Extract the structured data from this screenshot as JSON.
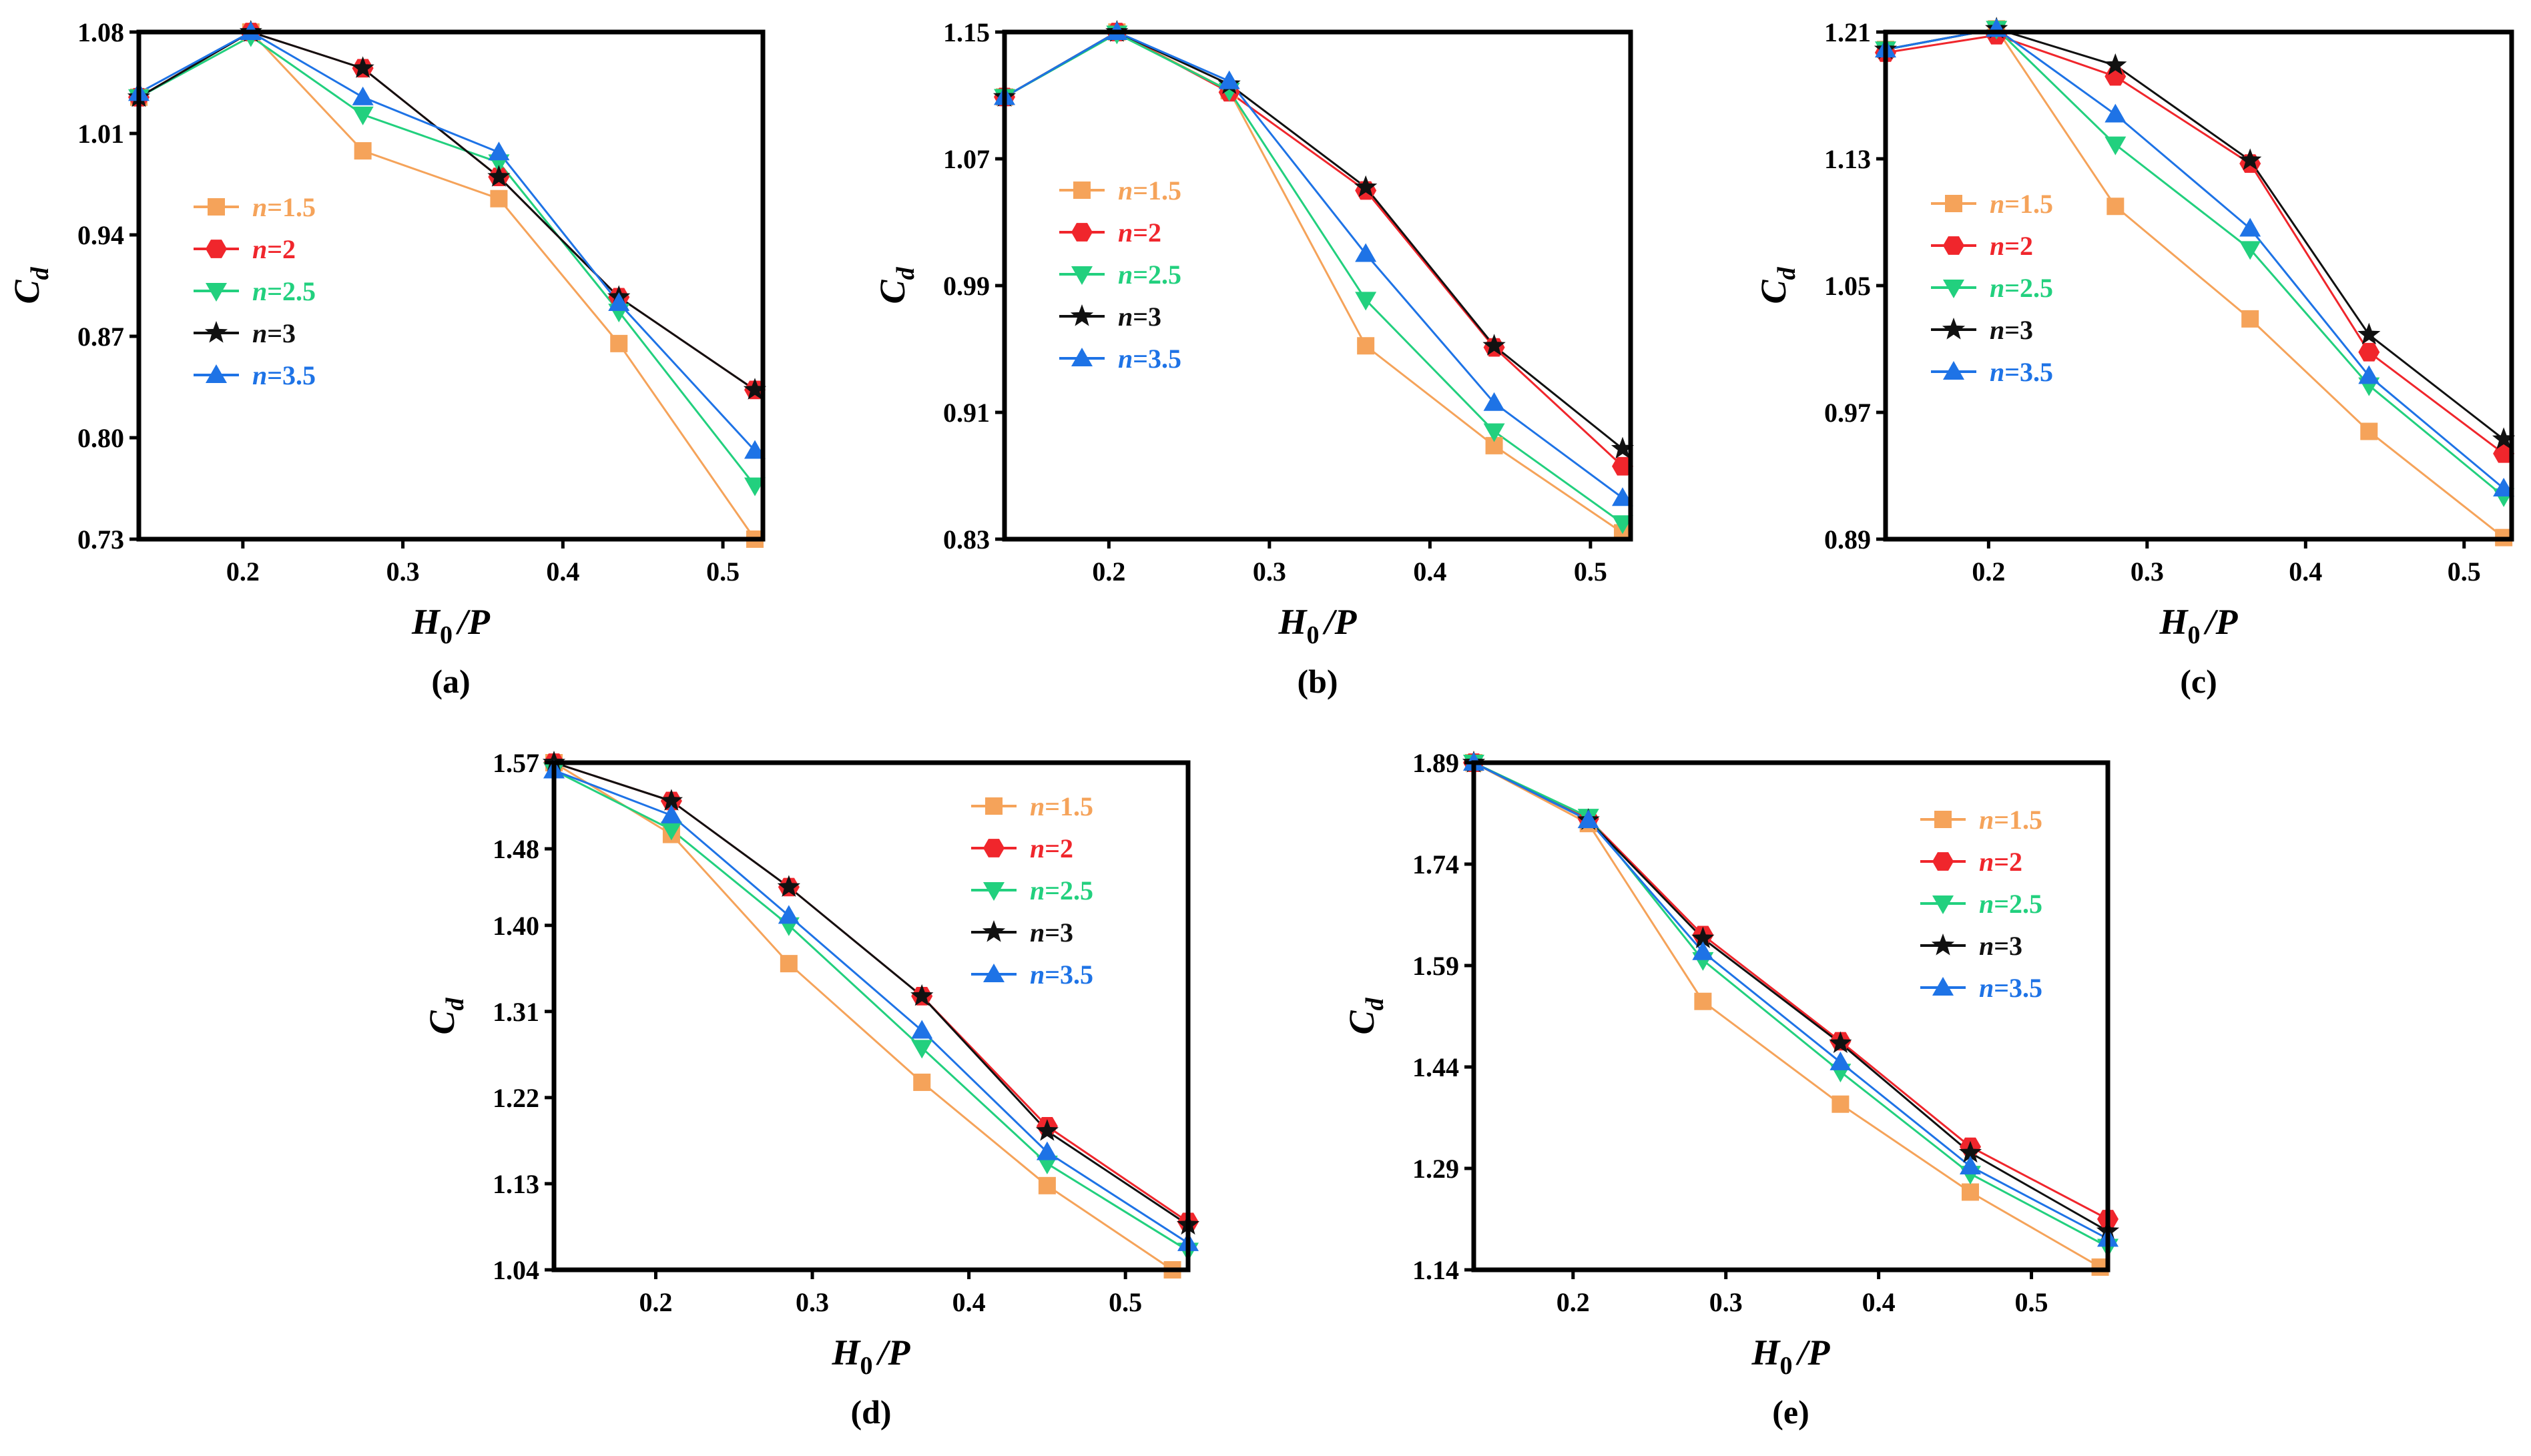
{
  "series_meta": [
    {
      "name": "n=1.5",
      "var": "n",
      "eq": "=1.5",
      "color": "#F5A35A",
      "marker": "square"
    },
    {
      "name": "n=2",
      "var": "n",
      "eq": "=2",
      "color": "#F0262C",
      "marker": "hexagon"
    },
    {
      "name": "n=2.5",
      "var": "n",
      "eq": "=2.5",
      "color": "#22D07E",
      "marker": "triangle-down"
    },
    {
      "name": "n=3",
      "var": "n",
      "eq": "=3",
      "color": "#111111",
      "marker": "star"
    },
    {
      "name": "n=3.5",
      "var": "n",
      "eq": "=3.5",
      "color": "#1E73E6",
      "marker": "triangle-up"
    }
  ],
  "chart_data": [
    {
      "type": "line",
      "label": "(a)",
      "xlabel_main": "H",
      "xlabel_sub": "0",
      "xlabel_rest": "/P",
      "ylabel_main": "C",
      "ylabel_sub": "d",
      "xlim": [
        0.135,
        0.525
      ],
      "ylim": [
        0.73,
        1.08
      ],
      "xticks": [
        0.2,
        0.3,
        0.4,
        0.5
      ],
      "xtick_labels": [
        "0.2",
        "0.3",
        "0.4",
        "0.5"
      ],
      "yticks": [
        0.73,
        0.8,
        0.87,
        0.94,
        1.01,
        1.08
      ],
      "ytick_labels": [
        "0.73",
        "0.80",
        "0.87",
        "0.94",
        "1.01",
        "1.08"
      ],
      "legend_position": "left",
      "series": [
        {
          "name": "n=1.5",
          "x": [
            0.135,
            0.205,
            0.275,
            0.36,
            0.435,
            0.52
          ],
          "values": [
            1.035,
            1.08,
            0.998,
            0.965,
            0.865,
            0.73
          ]
        },
        {
          "name": "n=2",
          "x": [
            0.135,
            0.205,
            0.275,
            0.36,
            0.435,
            0.52
          ],
          "values": [
            1.035,
            1.08,
            1.055,
            0.98,
            0.897,
            0.833
          ]
        },
        {
          "name": "n=2.5",
          "x": [
            0.135,
            0.205,
            0.275,
            0.36,
            0.435,
            0.52
          ],
          "values": [
            1.035,
            1.077,
            1.023,
            0.99,
            0.887,
            0.767
          ]
        },
        {
          "name": "n=3",
          "x": [
            0.135,
            0.205,
            0.275,
            0.36,
            0.435,
            0.52
          ],
          "values": [
            1.035,
            1.08,
            1.055,
            0.98,
            0.897,
            0.833
          ]
        },
        {
          "name": "n=3.5",
          "x": [
            0.135,
            0.205,
            0.275,
            0.36,
            0.435,
            0.52
          ],
          "values": [
            1.038,
            1.08,
            1.035,
            0.997,
            0.893,
            0.791
          ]
        }
      ]
    },
    {
      "type": "line",
      "label": "(b)",
      "xlabel_main": "H",
      "xlabel_sub": "0",
      "xlabel_rest": "/P",
      "ylabel_main": "C",
      "ylabel_sub": "d",
      "xlim": [
        0.135,
        0.525
      ],
      "ylim": [
        0.83,
        1.15
      ],
      "xticks": [
        0.2,
        0.3,
        0.4,
        0.5
      ],
      "xtick_labels": [
        "0.2",
        "0.3",
        "0.4",
        "0.5"
      ],
      "yticks": [
        0.83,
        0.91,
        0.99,
        1.07,
        1.15
      ],
      "ytick_labels": [
        "0.83",
        "0.91",
        "0.99",
        "1.07",
        "1.15"
      ],
      "legend_position": "left",
      "series": [
        {
          "name": "n=1.5",
          "x": [
            0.135,
            0.205,
            0.275,
            0.36,
            0.44,
            0.52
          ],
          "values": [
            1.109,
            1.15,
            1.113,
            0.952,
            0.889,
            0.834
          ]
        },
        {
          "name": "n=2",
          "x": [
            0.135,
            0.205,
            0.275,
            0.36,
            0.44,
            0.52
          ],
          "values": [
            1.109,
            1.15,
            1.112,
            1.05,
            0.951,
            0.876
          ]
        },
        {
          "name": "n=2.5",
          "x": [
            0.135,
            0.205,
            0.275,
            0.36,
            0.44,
            0.52
          ],
          "values": [
            1.109,
            1.149,
            1.113,
            0.981,
            0.898,
            0.84
          ]
        },
        {
          "name": "n=3",
          "x": [
            0.135,
            0.205,
            0.275,
            0.36,
            0.44,
            0.52
          ],
          "values": [
            1.109,
            1.15,
            1.117,
            1.052,
            0.952,
            0.887
          ]
        },
        {
          "name": "n=3.5",
          "x": [
            0.135,
            0.205,
            0.275,
            0.36,
            0.44,
            0.52
          ],
          "values": [
            1.109,
            1.15,
            1.119,
            1.01,
            0.916,
            0.856
          ]
        }
      ]
    },
    {
      "type": "line",
      "label": "(c)",
      "xlabel_main": "H",
      "xlabel_sub": "0",
      "xlabel_rest": "/P",
      "ylabel_main": "C",
      "ylabel_sub": "d",
      "xlim": [
        0.135,
        0.53
      ],
      "ylim": [
        0.89,
        1.21
      ],
      "xticks": [
        0.2,
        0.3,
        0.4,
        0.5
      ],
      "xtick_labels": [
        "0.2",
        "0.3",
        "0.4",
        "0.5"
      ],
      "yticks": [
        0.89,
        0.97,
        1.05,
        1.13,
        1.21
      ],
      "ytick_labels": [
        "0.89",
        "0.97",
        "1.05",
        "1.13",
        "1.21"
      ],
      "legend_position": "left",
      "series": [
        {
          "name": "n=1.5",
          "x": [
            0.135,
            0.205,
            0.28,
            0.365,
            0.44,
            0.525
          ],
          "values": [
            1.199,
            1.212,
            1.1,
            1.029,
            0.958,
            0.891
          ]
        },
        {
          "name": "n=2",
          "x": [
            0.135,
            0.205,
            0.28,
            0.365,
            0.44,
            0.525
          ],
          "values": [
            1.197,
            1.208,
            1.182,
            1.127,
            1.008,
            0.944
          ]
        },
        {
          "name": "n=2.5",
          "x": [
            0.135,
            0.205,
            0.28,
            0.365,
            0.44,
            0.525
          ],
          "values": [
            1.199,
            1.212,
            1.139,
            1.073,
            0.987,
            0.917
          ]
        },
        {
          "name": "n=3",
          "x": [
            0.135,
            0.205,
            0.28,
            0.365,
            0.44,
            0.525
          ],
          "values": [
            1.199,
            1.212,
            1.189,
            1.129,
            1.019,
            0.953
          ]
        },
        {
          "name": "n=3.5",
          "x": [
            0.135,
            0.205,
            0.28,
            0.365,
            0.44,
            0.525
          ],
          "values": [
            1.199,
            1.212,
            1.158,
            1.086,
            0.993,
            0.922
          ]
        }
      ]
    },
    {
      "type": "line",
      "label": "(d)",
      "xlabel_main": "H",
      "xlabel_sub": "0",
      "xlabel_rest": "/P",
      "ylabel_main": "C",
      "ylabel_sub": "d",
      "xlim": [
        0.135,
        0.54
      ],
      "ylim": [
        1.04,
        1.57
      ],
      "xticks": [
        0.2,
        0.3,
        0.4,
        0.5
      ],
      "xtick_labels": [
        "0.2",
        "0.3",
        "0.4",
        "0.5"
      ],
      "yticks": [
        1.04,
        1.13,
        1.22,
        1.31,
        1.4,
        1.48,
        1.57
      ],
      "ytick_labels": [
        "1.04",
        "1.13",
        "1.22",
        "1.31",
        "1.40",
        "1.48",
        "1.57"
      ],
      "legend_position": "top-right",
      "series": [
        {
          "name": "n=1.5",
          "x": [
            0.135,
            0.21,
            0.285,
            0.37,
            0.45,
            0.53
          ],
          "values": [
            1.57,
            1.495,
            1.36,
            1.236,
            1.128,
            1.04
          ]
        },
        {
          "name": "n=2",
          "x": [
            0.135,
            0.21,
            0.285,
            0.37,
            0.45,
            0.54
          ],
          "values": [
            1.57,
            1.53,
            1.44,
            1.326,
            1.19,
            1.09
          ]
        },
        {
          "name": "n=2.5",
          "x": [
            0.135,
            0.21,
            0.285,
            0.37,
            0.45,
            0.54
          ],
          "values": [
            1.562,
            1.5,
            1.4,
            1.272,
            1.151,
            1.06
          ]
        },
        {
          "name": "n=3",
          "x": [
            0.135,
            0.21,
            0.285,
            0.37,
            0.45,
            0.54
          ],
          "values": [
            1.57,
            1.53,
            1.44,
            1.326,
            1.185,
            1.087
          ]
        },
        {
          "name": "n=3.5",
          "x": [
            0.135,
            0.21,
            0.285,
            0.37,
            0.45,
            0.54
          ],
          "values": [
            1.562,
            1.515,
            1.41,
            1.29,
            1.163,
            1.068
          ]
        }
      ]
    },
    {
      "type": "line",
      "label": "(e)",
      "xlabel_main": "H",
      "xlabel_sub": "0",
      "xlabel_rest": "/P",
      "ylabel_main": "C",
      "ylabel_sub": "d",
      "xlim": [
        0.135,
        0.55
      ],
      "ylim": [
        1.14,
        1.89
      ],
      "xticks": [
        0.2,
        0.3,
        0.4,
        0.5
      ],
      "xtick_labels": [
        "0.2",
        "0.3",
        "0.4",
        "0.5"
      ],
      "yticks": [
        1.14,
        1.29,
        1.44,
        1.59,
        1.74,
        1.89
      ],
      "ytick_labels": [
        "1.14",
        "1.29",
        "1.44",
        "1.59",
        "1.74",
        "1.89"
      ],
      "legend_position": "top-right",
      "series": [
        {
          "name": "n=1.5",
          "x": [
            0.135,
            0.21,
            0.285,
            0.375,
            0.46,
            0.545
          ],
          "values": [
            1.89,
            1.8,
            1.537,
            1.385,
            1.255,
            1.144
          ]
        },
        {
          "name": "n=2",
          "x": [
            0.135,
            0.21,
            0.285,
            0.375,
            0.46,
            0.55
          ],
          "values": [
            1.89,
            1.807,
            1.635,
            1.478,
            1.322,
            1.215
          ]
        },
        {
          "name": "n=2.5",
          "x": [
            0.135,
            0.21,
            0.285,
            0.375,
            0.46,
            0.55
          ],
          "values": [
            1.89,
            1.81,
            1.598,
            1.433,
            1.282,
            1.174
          ]
        },
        {
          "name": "n=3",
          "x": [
            0.135,
            0.21,
            0.285,
            0.375,
            0.46,
            0.55
          ],
          "values": [
            1.89,
            1.805,
            1.63,
            1.475,
            1.313,
            1.197
          ]
        },
        {
          "name": "n=3.5",
          "x": [
            0.135,
            0.21,
            0.285,
            0.375,
            0.46,
            0.55
          ],
          "values": [
            1.89,
            1.805,
            1.61,
            1.447,
            1.293,
            1.186
          ]
        }
      ]
    }
  ]
}
